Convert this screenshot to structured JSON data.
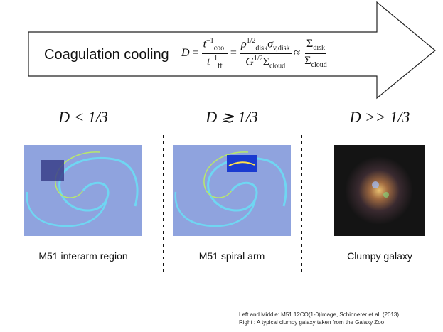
{
  "slide": {
    "headline": "Coagulation cooling",
    "equation": {
      "lhs": "D",
      "eq": "=",
      "f1": {
        "num": {
          "base": "t",
          "sup": "−1",
          "sub": "cool"
        },
        "den": {
          "base": "t",
          "sup": "−1",
          "sub": "ff"
        }
      },
      "eq2": "=",
      "f2": {
        "num": {
          "base": "ρ",
          "sup": "1/2",
          "sub": "disk",
          "rest": "σ",
          "rest_sub": "v,disk"
        },
        "den": {
          "base": "G",
          "sup": "1/2",
          "rest": "Σ",
          "rest_sub": "cloud"
        }
      },
      "approx": "≈",
      "f3": {
        "num": {
          "base": "Σ",
          "sub": "disk"
        },
        "den": {
          "base": "Σ",
          "sub": "cloud"
        }
      }
    },
    "panels": [
      {
        "condition": "D < 1/3",
        "caption": "M51 interarm region"
      },
      {
        "condition": "D ≳ 1/3",
        "caption": "M51 spiral arm"
      },
      {
        "condition": "D >> 1/3",
        "caption": "Clumpy galaxy"
      }
    ],
    "credits": [
      "Left and Middle: M51 12CO(1-0)Image, Schinnerer et al. (2013)",
      "Right :  A typical clumpy galaxy taken from the Galaxy Zoo"
    ]
  }
}
